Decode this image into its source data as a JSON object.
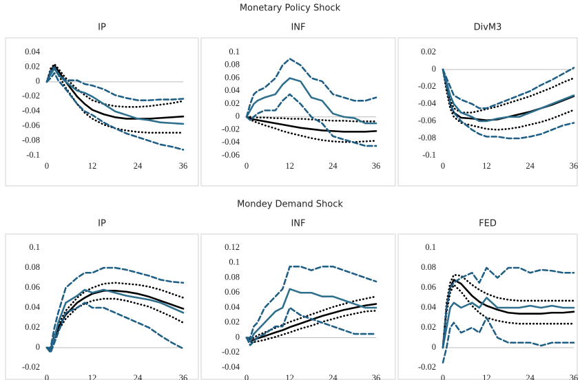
{
  "section_titles": [
    "Monetary Policy Shock",
    "Mondey Demand Shock"
  ],
  "chart_data": [
    {
      "type": "line",
      "title": "IP",
      "x": [
        0,
        1,
        2,
        3,
        5,
        8,
        10,
        12,
        15,
        18,
        21,
        24,
        27,
        30,
        33,
        36
      ],
      "xlim": [
        0,
        36
      ],
      "xticks": [
        0,
        12,
        24,
        36
      ],
      "ylim": [
        -0.1,
        0.04
      ],
      "yticks": [
        0.04,
        0.02,
        0,
        -0.02,
        -0.04,
        -0.06,
        -0.08,
        -0.1
      ],
      "series": [
        {
          "color": "#000000",
          "style": "solid",
          "values": [
            0,
            0.015,
            0.022,
            0.015,
            0,
            -0.02,
            -0.03,
            -0.038,
            -0.044,
            -0.048,
            -0.05,
            -0.05,
            -0.05,
            -0.049,
            -0.048,
            -0.047
          ]
        },
        {
          "color": "#000000",
          "style": "dotted",
          "values": [
            0,
            0.018,
            0.024,
            0.018,
            0.005,
            -0.01,
            -0.018,
            -0.025,
            -0.03,
            -0.033,
            -0.034,
            -0.034,
            -0.033,
            -0.031,
            -0.029,
            -0.026
          ]
        },
        {
          "color": "#000000",
          "style": "dotted",
          "values": [
            0,
            0.012,
            0.018,
            0.01,
            -0.008,
            -0.03,
            -0.042,
            -0.05,
            -0.058,
            -0.063,
            -0.066,
            -0.068,
            -0.069,
            -0.069,
            -0.069,
            -0.069
          ]
        },
        {
          "color": "#2e6f8e",
          "style": "solid",
          "values": [
            0,
            0.01,
            0.018,
            0.01,
            0,
            -0.012,
            -0.015,
            -0.02,
            -0.03,
            -0.04,
            -0.045,
            -0.05,
            -0.052,
            -0.055,
            -0.056,
            -0.057
          ]
        },
        {
          "color": "#1f5f85",
          "style": "dashed",
          "values": [
            0,
            0.015,
            0.02,
            0.01,
            0.002,
            0.002,
            -0.003,
            -0.005,
            -0.01,
            -0.018,
            -0.022,
            -0.025,
            -0.025,
            -0.024,
            -0.024,
            -0.023
          ]
        },
        {
          "color": "#1f5f85",
          "style": "dashed",
          "values": [
            0,
            0.005,
            0.012,
            0.002,
            -0.01,
            -0.03,
            -0.04,
            -0.045,
            -0.055,
            -0.063,
            -0.07,
            -0.075,
            -0.08,
            -0.085,
            -0.088,
            -0.092
          ]
        }
      ]
    },
    {
      "type": "line",
      "title": "INF",
      "x": [
        0,
        1,
        2,
        3,
        5,
        8,
        10,
        12,
        15,
        18,
        21,
        24,
        27,
        30,
        33,
        36
      ],
      "xlim": [
        0,
        36
      ],
      "xticks": [
        0,
        12,
        24,
        36
      ],
      "ylim": [
        -0.06,
        0.1
      ],
      "yticks": [
        0.1,
        0.08,
        0.06,
        0.04,
        0.02,
        0,
        -0.02,
        -0.04,
        -0.06
      ],
      "series": [
        {
          "color": "#000000",
          "style": "solid",
          "values": [
            0,
            -0.002,
            -0.004,
            -0.005,
            -0.007,
            -0.01,
            -0.012,
            -0.014,
            -0.017,
            -0.019,
            -0.021,
            -0.022,
            -0.023,
            -0.023,
            -0.023,
            -0.022
          ]
        },
        {
          "color": "#000000",
          "style": "dotted",
          "values": [
            0,
            0,
            0,
            -0.001,
            -0.001,
            -0.002,
            -0.002,
            -0.003,
            -0.003,
            -0.004,
            -0.005,
            -0.006,
            -0.006,
            -0.007,
            -0.007,
            -0.007
          ]
        },
        {
          "color": "#000000",
          "style": "dotted",
          "values": [
            0,
            -0.004,
            -0.007,
            -0.009,
            -0.013,
            -0.018,
            -0.022,
            -0.025,
            -0.029,
            -0.033,
            -0.036,
            -0.038,
            -0.039,
            -0.039,
            -0.038,
            -0.037
          ]
        },
        {
          "color": "#2e6f8e",
          "style": "solid",
          "values": [
            0,
            0.01,
            0.02,
            0.025,
            0.03,
            0.035,
            0.05,
            0.06,
            0.055,
            0.03,
            0.025,
            0.005,
            0,
            -0.002,
            -0.01,
            -0.01
          ]
        },
        {
          "color": "#1f5f85",
          "style": "dashed",
          "values": [
            0,
            0.02,
            0.035,
            0.04,
            0.045,
            0.06,
            0.08,
            0.09,
            0.08,
            0.06,
            0.055,
            0.035,
            0.03,
            0.025,
            0.025,
            0.03
          ]
        },
        {
          "color": "#1f5f85",
          "style": "dashed",
          "values": [
            0,
            -0.005,
            0,
            0.005,
            0.01,
            0.01,
            0.025,
            0.035,
            0.02,
            0,
            -0.01,
            -0.03,
            -0.035,
            -0.04,
            -0.045,
            -0.045
          ]
        }
      ]
    },
    {
      "type": "line",
      "title": "DivM3",
      "x": [
        0,
        1,
        2,
        3,
        5,
        8,
        10,
        12,
        15,
        18,
        21,
        24,
        27,
        30,
        33,
        36
      ],
      "xlim": [
        0,
        36
      ],
      "xticks": [
        0,
        12,
        24,
        36
      ],
      "ylim": [
        -0.1,
        0.02
      ],
      "yticks": [
        0.02,
        0,
        -0.02,
        -0.04,
        -0.06,
        -0.08,
        -0.1
      ],
      "series": [
        {
          "color": "#000000",
          "style": "solid",
          "values": [
            0,
            -0.02,
            -0.04,
            -0.05,
            -0.056,
            -0.057,
            -0.058,
            -0.059,
            -0.058,
            -0.055,
            -0.052,
            -0.049,
            -0.045,
            -0.041,
            -0.036,
            -0.031
          ]
        },
        {
          "color": "#000000",
          "style": "dotted",
          "values": [
            0,
            -0.015,
            -0.035,
            -0.045,
            -0.05,
            -0.05,
            -0.048,
            -0.046,
            -0.043,
            -0.039,
            -0.035,
            -0.031,
            -0.026,
            -0.021,
            -0.015,
            -0.01
          ]
        },
        {
          "color": "#000000",
          "style": "dotted",
          "values": [
            0,
            -0.025,
            -0.045,
            -0.055,
            -0.062,
            -0.065,
            -0.067,
            -0.069,
            -0.07,
            -0.069,
            -0.067,
            -0.064,
            -0.061,
            -0.057,
            -0.052,
            -0.047
          ]
        },
        {
          "color": "#2e6f8e",
          "style": "solid",
          "values": [
            0,
            -0.015,
            -0.03,
            -0.04,
            -0.05,
            -0.055,
            -0.06,
            -0.06,
            -0.057,
            -0.055,
            -0.055,
            -0.05,
            -0.045,
            -0.04,
            -0.035,
            -0.03
          ]
        },
        {
          "color": "#1f5f85",
          "style": "dashed",
          "values": [
            0,
            -0.01,
            -0.02,
            -0.03,
            -0.035,
            -0.04,
            -0.045,
            -0.045,
            -0.04,
            -0.035,
            -0.03,
            -0.025,
            -0.018,
            -0.012,
            -0.005,
            0.002
          ]
        },
        {
          "color": "#1f5f85",
          "style": "dashed",
          "values": [
            0,
            -0.02,
            -0.04,
            -0.05,
            -0.06,
            -0.07,
            -0.075,
            -0.078,
            -0.078,
            -0.08,
            -0.08,
            -0.078,
            -0.075,
            -0.07,
            -0.065,
            -0.062
          ]
        }
      ]
    },
    {
      "type": "line",
      "title": "IP",
      "x": [
        0,
        1,
        2,
        3,
        5,
        8,
        10,
        12,
        15,
        18,
        21,
        24,
        27,
        30,
        33,
        36
      ],
      "xlim": [
        0,
        36
      ],
      "xticks": [
        0,
        12,
        24,
        36
      ],
      "ylim": [
        -0.02,
        0.1
      ],
      "yticks": [
        0.1,
        0.08,
        0.06,
        0.04,
        0.02,
        0,
        -0.02
      ],
      "series": [
        {
          "color": "#000000",
          "style": "solid",
          "values": [
            0,
            -0.002,
            0.01,
            0.02,
            0.033,
            0.045,
            0.05,
            0.054,
            0.057,
            0.057,
            0.056,
            0.054,
            0.051,
            0.047,
            0.043,
            0.039
          ]
        },
        {
          "color": "#000000",
          "style": "dotted",
          "values": [
            0,
            0,
            0.012,
            0.023,
            0.037,
            0.05,
            0.056,
            0.06,
            0.064,
            0.065,
            0.064,
            0.063,
            0.061,
            0.058,
            0.054,
            0.05
          ]
        },
        {
          "color": "#000000",
          "style": "dotted",
          "values": [
            0,
            -0.004,
            0.008,
            0.017,
            0.029,
            0.04,
            0.044,
            0.047,
            0.049,
            0.049,
            0.047,
            0.044,
            0.041,
            0.036,
            0.031,
            0.025
          ]
        },
        {
          "color": "#2e6f8e",
          "style": "solid",
          "values": [
            0,
            -0.003,
            0.01,
            0.025,
            0.045,
            0.052,
            0.058,
            0.055,
            0.058,
            0.055,
            0.052,
            0.05,
            0.048,
            0.045,
            0.04,
            0.035
          ]
        },
        {
          "color": "#1f5f85",
          "style": "dashed",
          "values": [
            0,
            0,
            0.02,
            0.035,
            0.06,
            0.07,
            0.075,
            0.075,
            0.08,
            0.08,
            0.078,
            0.075,
            0.072,
            0.068,
            0.066,
            0.065
          ]
        },
        {
          "color": "#1f5f85",
          "style": "dashed",
          "values": [
            0,
            -0.005,
            0.005,
            0.015,
            0.035,
            0.04,
            0.045,
            0.04,
            0.04,
            0.035,
            0.03,
            0.025,
            0.02,
            0.012,
            0.005,
            -0.001
          ]
        }
      ]
    },
    {
      "type": "line",
      "title": "INF",
      "x": [
        0,
        1,
        2,
        3,
        5,
        8,
        10,
        12,
        15,
        18,
        21,
        24,
        27,
        30,
        33,
        36
      ],
      "xlim": [
        0,
        36
      ],
      "xticks": [
        0,
        12,
        24,
        36
      ],
      "ylim": [
        -0.04,
        0.12
      ],
      "yticks": [
        0.12,
        0.1,
        0.08,
        0.06,
        0.04,
        0.02,
        0,
        -0.02,
        -0.04
      ],
      "series": [
        {
          "color": "#000000",
          "style": "solid",
          "values": [
            0,
            -0.004,
            -0.003,
            -0.001,
            0.002,
            0.007,
            0.01,
            0.014,
            0.019,
            0.024,
            0.029,
            0.033,
            0.037,
            0.04,
            0.043,
            0.045
          ]
        },
        {
          "color": "#000000",
          "style": "dotted",
          "values": [
            0,
            -0.002,
            0,
            0.003,
            0.007,
            0.013,
            0.017,
            0.021,
            0.026,
            0.031,
            0.036,
            0.041,
            0.045,
            0.049,
            0.052,
            0.055
          ]
        },
        {
          "color": "#000000",
          "style": "dotted",
          "values": [
            0,
            -0.006,
            -0.006,
            -0.005,
            -0.003,
            0.001,
            0.004,
            0.007,
            0.012,
            0.016,
            0.021,
            0.025,
            0.029,
            0.032,
            0.035,
            0.036
          ]
        },
        {
          "color": "#2e6f8e",
          "style": "solid",
          "values": [
            0,
            -0.005,
            0.005,
            0.01,
            0.02,
            0.035,
            0.04,
            0.065,
            0.06,
            0.06,
            0.055,
            0.055,
            0.05,
            0.045,
            0.04,
            0.04
          ]
        },
        {
          "color": "#1f5f85",
          "style": "dashed",
          "values": [
            0,
            0,
            0.015,
            0.02,
            0.04,
            0.055,
            0.065,
            0.095,
            0.095,
            0.09,
            0.095,
            0.095,
            0.09,
            0.085,
            0.08,
            0.075
          ]
        },
        {
          "color": "#1f5f85",
          "style": "dashed",
          "values": [
            0,
            -0.01,
            -0.005,
            0,
            0.005,
            0.015,
            0.015,
            0.04,
            0.03,
            0.025,
            0.02,
            0.015,
            0.01,
            0.005,
            0.005,
            0.005
          ]
        }
      ]
    },
    {
      "type": "line",
      "title": "FED",
      "x": [
        0,
        1,
        2,
        3,
        5,
        8,
        10,
        12,
        15,
        18,
        21,
        24,
        27,
        30,
        33,
        36
      ],
      "xlim": [
        0,
        36
      ],
      "xticks": [
        0,
        12,
        24,
        36
      ],
      "ylim": [
        -0.02,
        0.1
      ],
      "yticks": [
        0.1,
        0.08,
        0.06,
        0.04,
        0.02,
        0,
        -0.02
      ],
      "series": [
        {
          "color": "#000000",
          "style": "solid",
          "values": [
            0,
            0.04,
            0.06,
            0.068,
            0.064,
            0.052,
            0.046,
            0.042,
            0.038,
            0.035,
            0.034,
            0.034,
            0.034,
            0.035,
            0.035,
            0.036
          ]
        },
        {
          "color": "#000000",
          "style": "dotted",
          "values": [
            0,
            0.045,
            0.065,
            0.073,
            0.072,
            0.063,
            0.058,
            0.054,
            0.05,
            0.048,
            0.047,
            0.047,
            0.047,
            0.047,
            0.047,
            0.047
          ]
        },
        {
          "color": "#000000",
          "style": "dotted",
          "values": [
            0,
            0.035,
            0.055,
            0.063,
            0.056,
            0.042,
            0.035,
            0.03,
            0.027,
            0.025,
            0.024,
            0.024,
            0.024,
            0.024,
            0.024,
            0.024
          ]
        },
        {
          "color": "#2e6f8e",
          "style": "solid",
          "values": [
            0,
            0.02,
            0.04,
            0.045,
            0.04,
            0.045,
            0.04,
            0.05,
            0.04,
            0.04,
            0.04,
            0.042,
            0.04,
            0.042,
            0.04,
            0.04
          ]
        },
        {
          "color": "#1f5f85",
          "style": "dashed",
          "values": [
            0,
            0.04,
            0.06,
            0.065,
            0.07,
            0.075,
            0.065,
            0.08,
            0.07,
            0.08,
            0.08,
            0.075,
            0.078,
            0.077,
            0.075,
            0.075
          ]
        },
        {
          "color": "#1f5f85",
          "style": "dashed",
          "values": [
            -0.015,
            0,
            0.02,
            0.025,
            0.015,
            0.02,
            0.015,
            0.03,
            0.01,
            0.005,
            0.005,
            0.005,
            0.002,
            0.005,
            0.005,
            0.005
          ]
        }
      ]
    }
  ]
}
